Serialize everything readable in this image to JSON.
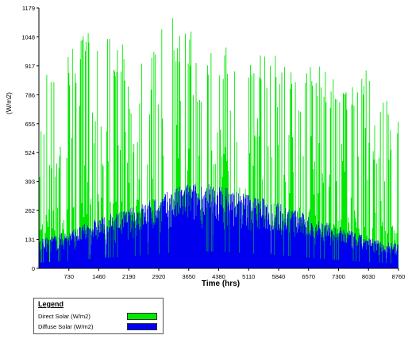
{
  "chart_data": {
    "type": "area",
    "title": "",
    "xlabel": "Time (hrs)",
    "ylabel": "(W/m2)",
    "xlim": [
      0,
      8760
    ],
    "ylim": [
      0,
      1179
    ],
    "x_ticks": [
      "730",
      "1460",
      "2190",
      "2920",
      "3650",
      "4380",
      "5110",
      "5840",
      "6570",
      "7300",
      "8030",
      "8760"
    ],
    "y_ticks": [
      "0",
      "131",
      "262",
      "393",
      "524",
      "655",
      "786",
      "917",
      "1048",
      "1179"
    ],
    "grid": false,
    "legend_position": "bottom-left",
    "series": [
      {
        "name": "Direct Solar (W/m2)",
        "color": "#00e800",
        "profile_x": [
          0,
          730,
          1460,
          2190,
          2920,
          3650,
          4380,
          5110,
          5840,
          6570,
          7300,
          8030,
          8760
        ],
        "profile_peak": [
          950,
          990,
          1130,
          1000,
          1170,
          1110,
          1040,
          1000,
          980,
          960,
          850,
          930,
          680
        ]
      },
      {
        "name": "Diffuse Solar (W/m2)",
        "color": "#0000ee",
        "profile_x": [
          0,
          730,
          1460,
          2190,
          2920,
          3650,
          4380,
          5110,
          5840,
          6570,
          7300,
          8030,
          8760
        ],
        "profile_peak": [
          130,
          170,
          230,
          270,
          330,
          390,
          380,
          340,
          300,
          240,
          190,
          140,
          110
        ]
      }
    ]
  },
  "legend": {
    "title": "Legend",
    "items": [
      {
        "label": "Direct Solar (W/m2)",
        "color": "#00e800"
      },
      {
        "label": "Diffuse Solar (W/m2)",
        "color": "#0000ee"
      }
    ]
  }
}
